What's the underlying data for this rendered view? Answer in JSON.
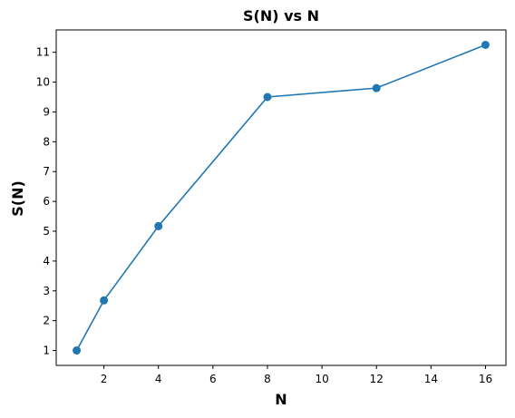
{
  "chart_data": {
    "type": "line",
    "title": "S(N) vs N",
    "xlabel": "N",
    "ylabel": "S(N)",
    "xlim": [
      0.25,
      16.75
    ],
    "ylim": [
      0.5,
      11.75
    ],
    "xticks": [
      2,
      4,
      6,
      8,
      10,
      12,
      14,
      16
    ],
    "yticks": [
      1,
      2,
      3,
      4,
      5,
      6,
      7,
      8,
      9,
      10,
      11
    ],
    "grid": false,
    "series": [
      {
        "x": [
          1,
          2,
          4,
          8,
          12,
          16
        ],
        "y": [
          1.0,
          2.68,
          5.17,
          9.5,
          9.8,
          11.25
        ],
        "color": "#1f77b4",
        "marker": "circle"
      }
    ]
  }
}
